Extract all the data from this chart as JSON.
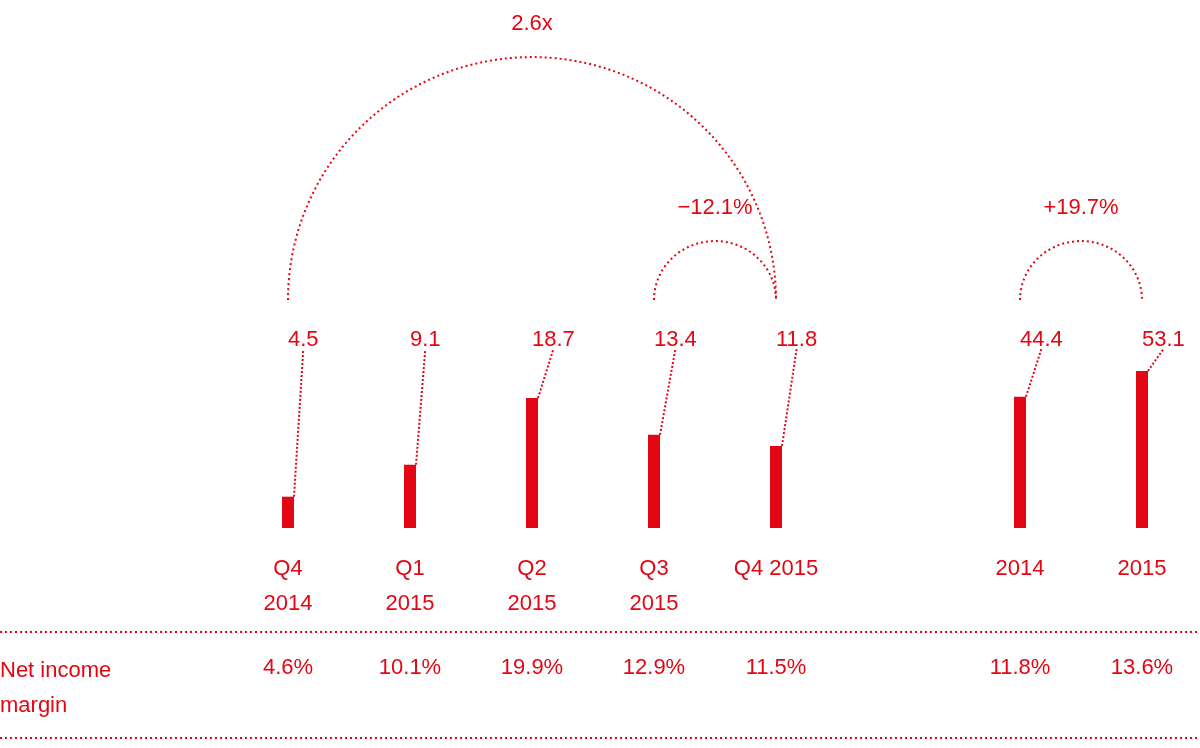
{
  "chart_data": [
    {
      "type": "bar",
      "categories": [
        "Q4\n2014",
        "Q1\n2015",
        "Q2\n2015",
        "Q3\n2015",
        "Q4 2015"
      ],
      "values": [
        4.5,
        9.1,
        18.7,
        13.4,
        11.8
      ],
      "color": "#e30613",
      "data_labels": true,
      "annotations": [
        "2.6x",
        "−12.1%",
        "Net income margin",
        "4.6%",
        "10.1%",
        "19.9%",
        "12.9%",
        "11.5%"
      ]
    },
    {
      "type": "bar",
      "categories": [
        "2014",
        "2015"
      ],
      "values": [
        44.4,
        53.1
      ],
      "color": "#e30613",
      "data_labels": true,
      "annotations": [
        "+19.7%",
        "11.8%",
        "13.6%"
      ]
    }
  ]
}
